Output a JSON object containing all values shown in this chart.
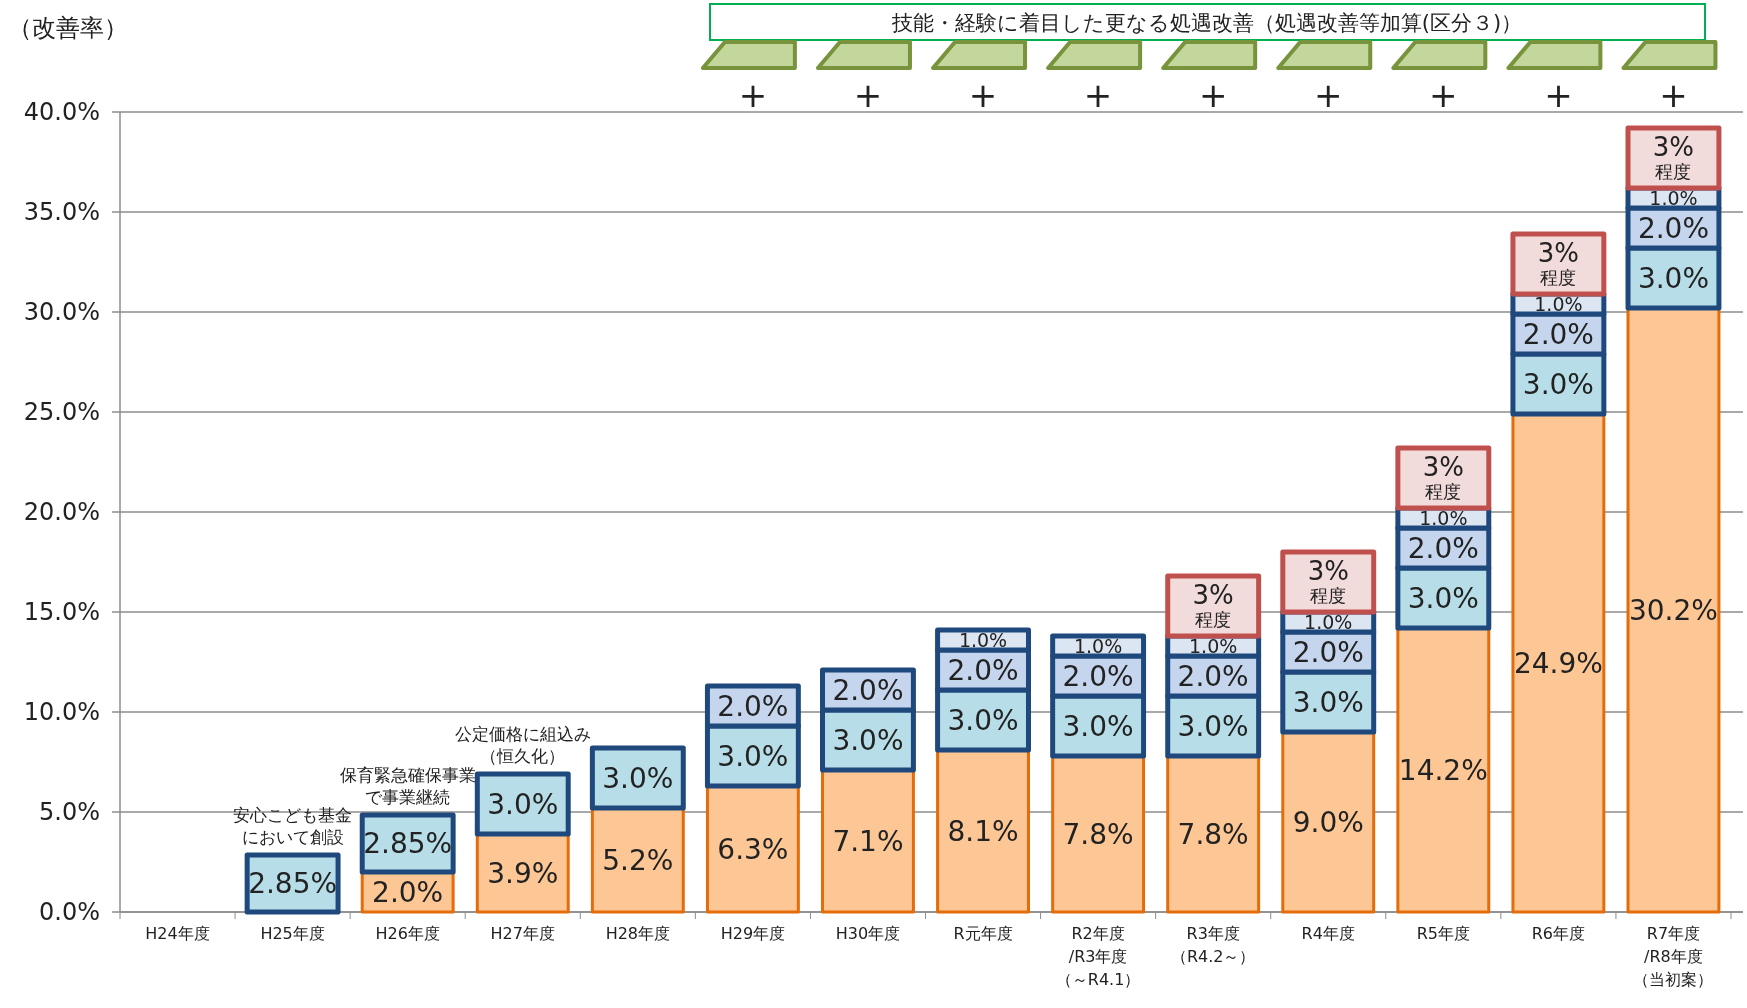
{
  "chart_data": {
    "type": "bar",
    "stacked": true,
    "ylabel": "（改善率）",
    "categories": [
      "H24年度",
      "H25年度",
      "H26年度",
      "H27年度",
      "H28年度",
      "H29年度",
      "H30年度",
      "R元年度",
      "R2年度/R3年度（～R4.1）",
      "R3年度（R4.2～）",
      "R4年度",
      "R5年度",
      "R6年度",
      "R7年度/R8年度（当初案）"
    ],
    "series": [
      {
        "color": "#fcc795",
        "values": [
          null,
          null,
          2.0,
          3.9,
          5.2,
          6.3,
          7.1,
          8.1,
          7.8,
          7.8,
          9.0,
          14.2,
          24.9,
          30.2
        ],
        "value_labels": [
          null,
          null,
          "2.0%",
          "3.9%",
          "5.2%",
          "6.3%",
          "7.1%",
          "8.1%",
          "7.8%",
          "7.8%",
          "9.0%",
          "14.2%",
          "24.9%",
          "30.2%"
        ]
      },
      {
        "color": "#b7dee8",
        "values": [
          null,
          2.85,
          2.85,
          3.0,
          3.0,
          3.0,
          3.0,
          3.0,
          3.0,
          3.0,
          3.0,
          3.0,
          3.0,
          3.0
        ],
        "value_labels": [
          null,
          "2.85%",
          "2.85%",
          "3.0%",
          "3.0%",
          "3.0%",
          "3.0%",
          "3.0%",
          "3.0%",
          "3.0%",
          "3.0%",
          "3.0%",
          "3.0%",
          "3.0%"
        ]
      },
      {
        "color": "#c5d5ee",
        "values": [
          null,
          null,
          null,
          null,
          null,
          2.0,
          2.0,
          2.0,
          2.0,
          2.0,
          2.0,
          2.0,
          2.0,
          2.0
        ],
        "value_labels": [
          null,
          null,
          null,
          null,
          null,
          "2.0%",
          "2.0%",
          "2.0%",
          "2.0%",
          "2.0%",
          "2.0%",
          "2.0%",
          "2.0%",
          "2.0%"
        ]
      },
      {
        "color": "#dce6f2",
        "values": [
          null,
          null,
          null,
          null,
          null,
          null,
          null,
          1.0,
          1.0,
          1.0,
          1.0,
          1.0,
          1.0,
          1.0
        ],
        "value_labels": [
          null,
          null,
          null,
          null,
          null,
          null,
          null,
          "1.0%",
          "1.0%",
          "1.0%",
          "1.0%",
          "1.0%",
          "1.0%",
          "1.0%"
        ]
      },
      {
        "color": "#f2dcdb",
        "values": [
          null,
          null,
          null,
          null,
          null,
          null,
          null,
          null,
          null,
          3,
          3,
          3,
          3,
          3
        ],
        "value_labels": [
          null,
          null,
          null,
          null,
          null,
          null,
          null,
          null,
          null,
          "3%程度",
          "3%程度",
          "3%程度",
          "3%程度",
          "3%程度"
        ]
      }
    ],
    "ylim": [
      0,
      40
    ],
    "yticks": [
      {
        "value": 0,
        "label": "0.0%"
      },
      {
        "value": 5,
        "label": "5.0%"
      },
      {
        "value": 10,
        "label": "10.0%"
      },
      {
        "value": 15,
        "label": "15.0%"
      },
      {
        "value": 20,
        "label": "20.0%"
      },
      {
        "value": 25,
        "label": "25.0%"
      },
      {
        "value": 30,
        "label": "30.0%"
      },
      {
        "value": 35,
        "label": "35.0%"
      },
      {
        "value": 40,
        "label": "40.0%"
      }
    ],
    "grid": "y",
    "annotations": [
      {
        "text": "安心こども基金において創設",
        "x": "H25年度",
        "y": 2.85
      },
      {
        "text": "保育緊急確保事業で事業継続",
        "x": "H26年度",
        "y": 4.85
      },
      {
        "text": "公定価格に組込み（恒久化）",
        "x": "H27年度",
        "y": 6.9
      },
      "技能・経験に着目した更なる処遇改善（処遇改善等加算(区分３)）",
      "+",
      "+",
      "+",
      "+",
      "+",
      "+",
      "+",
      "+",
      "+"
    ]
  }
}
